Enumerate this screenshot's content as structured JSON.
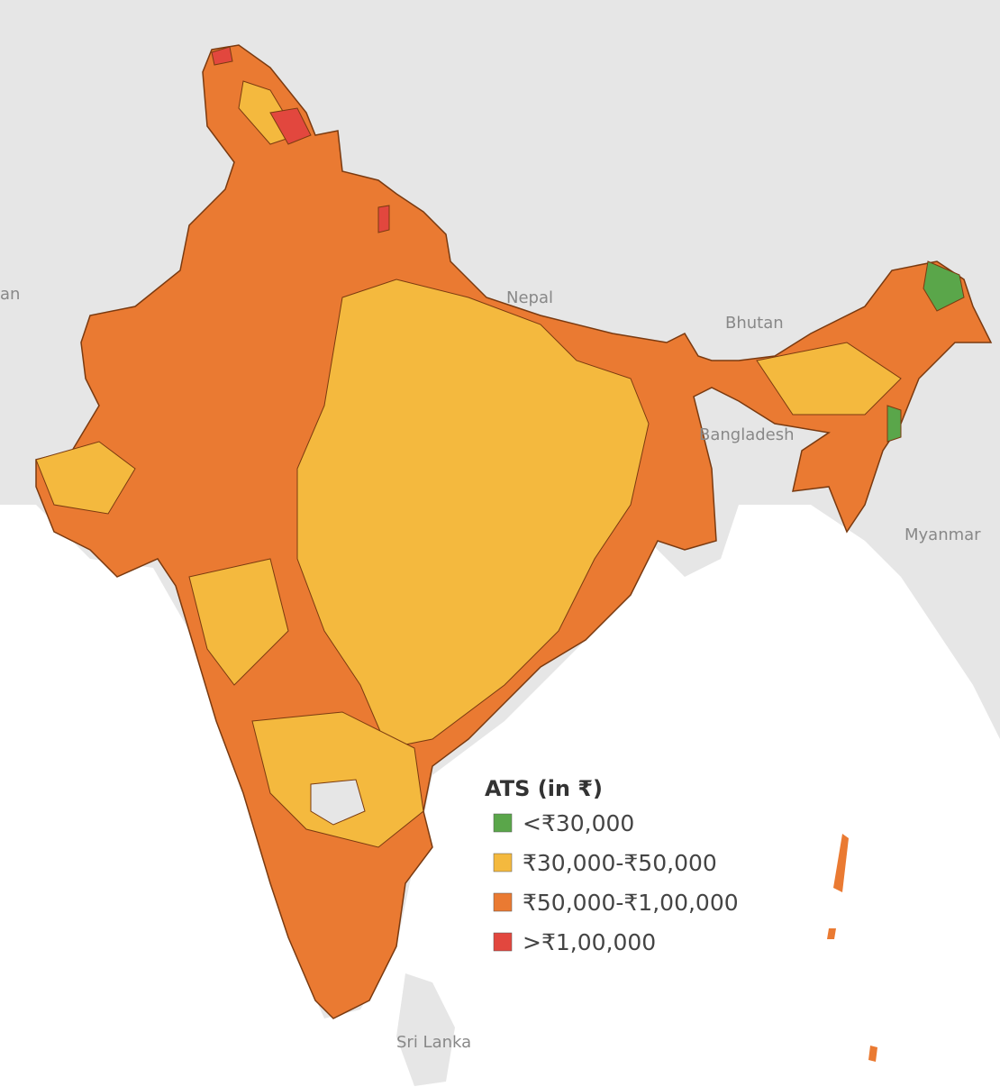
{
  "map": {
    "labels": [
      "an",
      "Nepal",
      "Bhutan",
      "Bangladesh",
      "Myanmar",
      "Sri Lanka"
    ]
  },
  "legend": {
    "title": "ATS (in ₹)",
    "items": [
      {
        "label": "<₹30,000",
        "color": "#5aa64a"
      },
      {
        "label": "₹30,000-₹50,000",
        "color": "#f4b93e"
      },
      {
        "label": "₹50,000-₹1,00,000",
        "color": "#ea7a32"
      },
      {
        "label": ">₹1,00,000",
        "color": "#e2473e"
      }
    ]
  }
}
